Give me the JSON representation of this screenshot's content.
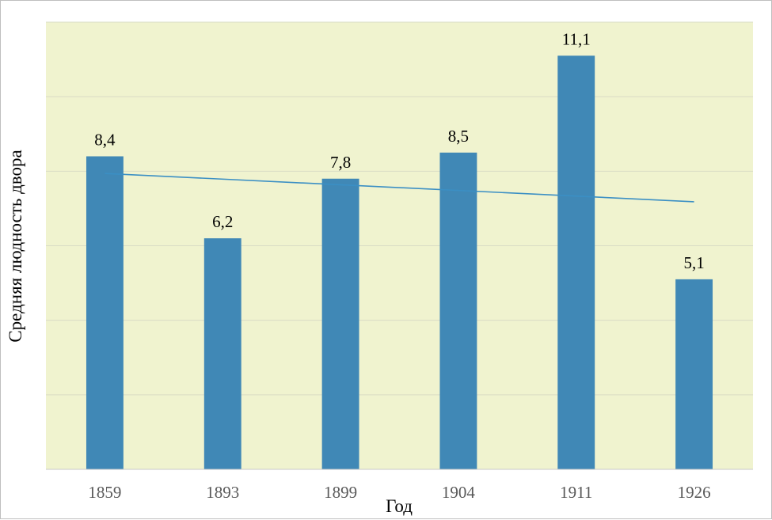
{
  "colors": {
    "plot_background": "#f0f3cf",
    "bar": "#4088b6",
    "trendline": "#3b8fc4",
    "gridline": "#d9dcc4",
    "axis_line": "#c8c8c8",
    "tick_text": "#595959",
    "label_text": "#000000"
  },
  "chart_data": {
    "type": "bar",
    "title": "",
    "xlabel": "Год",
    "ylabel": "Средняя людность двора",
    "categories": [
      "1859",
      "1893",
      "1899",
      "1904",
      "1911",
      "1926"
    ],
    "series": [
      {
        "values": [
          8.4,
          6.2,
          7.8,
          8.5,
          11.1,
          5.1
        ],
        "data_labels": [
          "8,4",
          "6,2",
          "7,8",
          "8,5",
          "11,1",
          "5,1"
        ]
      }
    ],
    "trendline": {
      "type": "linear",
      "start": 7.94,
      "end": 7.18
    },
    "ylim": [
      0,
      12
    ],
    "gridline_step": 2,
    "y_tick_labels_visible": false,
    "grid": true,
    "legend": "none"
  }
}
